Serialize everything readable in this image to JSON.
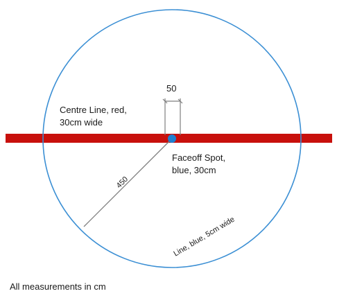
{
  "colors": {
    "centre_line": "#c8100c",
    "circle_line": "#3b8fd4",
    "faceoff_spot": "#1f7fd0",
    "dimension": "#7f7f7f",
    "text": "#1a1a1a"
  },
  "labels": {
    "spot_width": "50",
    "centre_line": [
      "Centre Line, red,",
      "30cm wide"
    ],
    "faceoff_spot": [
      "Faceoff Spot,",
      "blue, 30cm"
    ],
    "radius": "450",
    "circle_line": "Line, blue, 5cm wide"
  },
  "footnote": "All measurements in cm"
}
